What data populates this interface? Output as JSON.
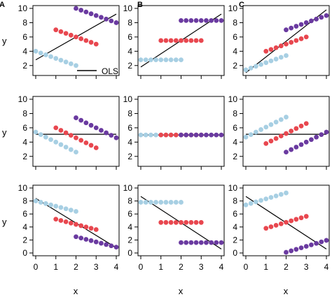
{
  "panel_letters": [
    "A",
    "B",
    "C"
  ],
  "ylabels": [
    "y",
    "y",
    "y"
  ],
  "xlabels": [
    "x",
    "x",
    "x"
  ],
  "legend": {
    "label": "OLS"
  },
  "colors": {
    "light_blue": "#a7cfe3",
    "red": "#e8474f",
    "purple": "#6a3aa0",
    "line": "#000000"
  },
  "chart_data": [
    {
      "type": "scatter",
      "row": 1,
      "col": 1,
      "xlim": [
        0,
        4
      ],
      "ylim": [
        1,
        10
      ],
      "xticks": [
        0,
        1,
        2,
        3,
        4
      ],
      "yticks": [
        2,
        4,
        6,
        8,
        10
      ],
      "series": [
        {
          "color": "light_blue",
          "x": [
            0,
            0.25,
            0.5,
            0.75,
            1,
            1.25,
            1.5,
            1.75,
            2
          ],
          "y": [
            4,
            3.75,
            3.5,
            3.25,
            3,
            2.75,
            2.5,
            2.25,
            2
          ]
        },
        {
          "color": "red",
          "x": [
            1,
            1.25,
            1.5,
            1.75,
            2,
            2.25,
            2.5,
            2.75,
            3
          ],
          "y": [
            7,
            6.75,
            6.5,
            6.25,
            6,
            5.75,
            5.5,
            5.25,
            5
          ]
        },
        {
          "color": "purple",
          "x": [
            2,
            2.25,
            2.5,
            2.75,
            3,
            3.25,
            3.5,
            3.75,
            4
          ],
          "y": [
            10,
            9.75,
            9.5,
            9.25,
            9,
            8.75,
            8.5,
            8.25,
            8
          ]
        }
      ],
      "ols": {
        "x": [
          0,
          4
        ],
        "y": [
          2.8,
          9.2
        ]
      },
      "show_legend": true
    },
    {
      "type": "scatter",
      "row": 1,
      "col": 2,
      "xlim": [
        0,
        4
      ],
      "ylim": [
        1,
        10
      ],
      "xticks": [
        0,
        1,
        2,
        3,
        4
      ],
      "yticks": [
        2,
        4,
        6,
        8,
        10
      ],
      "series": [
        {
          "color": "light_blue",
          "x": [
            0,
            0.25,
            0.5,
            0.75,
            1,
            1.25,
            1.5,
            1.75,
            2
          ],
          "y": [
            2.8,
            2.8,
            2.8,
            2.8,
            2.8,
            2.8,
            2.8,
            2.8,
            2.8
          ]
        },
        {
          "color": "red",
          "x": [
            1,
            1.25,
            1.5,
            1.75,
            2,
            2.25,
            2.5,
            2.75,
            3
          ],
          "y": [
            5.5,
            5.5,
            5.5,
            5.5,
            5.5,
            5.5,
            5.5,
            5.5,
            5.5
          ]
        },
        {
          "color": "purple",
          "x": [
            2,
            2.25,
            2.5,
            2.75,
            3,
            3.25,
            3.5,
            3.75,
            4
          ],
          "y": [
            8.3,
            8.3,
            8.3,
            8.3,
            8.3,
            8.3,
            8.3,
            8.3,
            8.3
          ]
        }
      ],
      "ols": {
        "x": [
          0,
          4
        ],
        "y": [
          1.8,
          9.2
        ]
      }
    },
    {
      "type": "scatter",
      "row": 1,
      "col": 3,
      "xlim": [
        0,
        4
      ],
      "ylim": [
        1,
        10
      ],
      "xticks": [
        0,
        1,
        2,
        3,
        4
      ],
      "yticks": [
        2,
        4,
        6,
        8,
        10
      ],
      "series": [
        {
          "color": "light_blue",
          "x": [
            0,
            0.25,
            0.5,
            0.75,
            1,
            1.25,
            1.5,
            1.75,
            2
          ],
          "y": [
            1.4,
            1.65,
            1.9,
            2.15,
            2.4,
            2.65,
            2.9,
            3.15,
            3.4
          ]
        },
        {
          "color": "red",
          "x": [
            1,
            1.25,
            1.5,
            1.75,
            2,
            2.25,
            2.5,
            2.75,
            3
          ],
          "y": [
            4,
            4.25,
            4.5,
            4.75,
            5,
            5.25,
            5.5,
            5.75,
            6
          ]
        },
        {
          "color": "purple",
          "x": [
            2,
            2.25,
            2.5,
            2.75,
            3,
            3.25,
            3.5,
            3.75,
            4
          ],
          "y": [
            7,
            7.25,
            7.5,
            7.75,
            8,
            8.25,
            8.5,
            8.75,
            9
          ]
        }
      ],
      "ols": {
        "x": [
          0,
          4
        ],
        "y": [
          1.0,
          9.8
        ]
      }
    },
    {
      "type": "scatter",
      "row": 2,
      "col": 1,
      "xlim": [
        0,
        4
      ],
      "ylim": [
        1,
        10
      ],
      "xticks": [
        0,
        1,
        2,
        3,
        4
      ],
      "yticks": [
        2,
        4,
        6,
        8,
        10
      ],
      "series": [
        {
          "color": "light_blue",
          "x": [
            0,
            0.25,
            0.5,
            0.75,
            1,
            1.25,
            1.5,
            1.75,
            2
          ],
          "y": [
            5.4,
            5.05,
            4.7,
            4.35,
            4,
            3.65,
            3.3,
            2.95,
            2.6
          ]
        },
        {
          "color": "red",
          "x": [
            1,
            1.25,
            1.5,
            1.75,
            2,
            2.25,
            2.5,
            2.75,
            3
          ],
          "y": [
            6,
            5.65,
            5.3,
            4.95,
            4.6,
            4.25,
            3.9,
            3.55,
            3.2
          ]
        },
        {
          "color": "purple",
          "x": [
            2,
            2.25,
            2.5,
            2.75,
            3,
            3.25,
            3.5,
            3.75,
            4
          ],
          "y": [
            7.4,
            7.05,
            6.7,
            6.35,
            6,
            5.65,
            5.3,
            4.95,
            4.6
          ]
        }
      ],
      "ols": {
        "x": [
          0,
          4
        ],
        "y": [
          5.1,
          5.1
        ]
      }
    },
    {
      "type": "scatter",
      "row": 2,
      "col": 2,
      "xlim": [
        0,
        4
      ],
      "ylim": [
        1,
        10
      ],
      "xticks": [
        0,
        1,
        2,
        3,
        4
      ],
      "yticks": [
        2,
        4,
        6,
        8,
        10
      ],
      "series": [
        {
          "color": "light_blue",
          "x": [
            0,
            0.25,
            0.5,
            0.75,
            1,
            1.25,
            1.5,
            1.75,
            2
          ],
          "y": [
            5,
            5,
            5,
            5,
            5,
            5,
            5,
            5,
            5
          ]
        },
        {
          "color": "red",
          "x": [
            1,
            1.25,
            1.5,
            1.75,
            2,
            2.25,
            2.5,
            2.75,
            3
          ],
          "y": [
            5,
            5,
            5,
            5,
            5,
            5,
            5,
            5,
            5
          ]
        },
        {
          "color": "purple",
          "x": [
            2,
            2.25,
            2.5,
            2.75,
            3,
            3.25,
            3.5,
            3.75,
            4
          ],
          "y": [
            5,
            5,
            5,
            5,
            5,
            5,
            5,
            5,
            5
          ]
        }
      ],
      "ols": {
        "x": [
          0,
          4
        ],
        "y": [
          5,
          5
        ]
      }
    },
    {
      "type": "scatter",
      "row": 2,
      "col": 3,
      "xlim": [
        0,
        4
      ],
      "ylim": [
        1,
        10
      ],
      "xticks": [
        0,
        1,
        2,
        3,
        4
      ],
      "yticks": [
        2,
        4,
        6,
        8,
        10
      ],
      "series": [
        {
          "color": "light_blue",
          "x": [
            0,
            0.25,
            0.5,
            0.75,
            1,
            1.25,
            1.5,
            1.75,
            2
          ],
          "y": [
            4.7,
            5.05,
            5.4,
            5.75,
            6.1,
            6.45,
            6.8,
            7.15,
            7.5
          ]
        },
        {
          "color": "red",
          "x": [
            1,
            1.25,
            1.5,
            1.75,
            2,
            2.25,
            2.5,
            2.75,
            3
          ],
          "y": [
            3.8,
            4.15,
            4.5,
            4.85,
            5.2,
            5.55,
            5.9,
            6.25,
            6.6
          ]
        },
        {
          "color": "purple",
          "x": [
            2,
            2.25,
            2.5,
            2.75,
            3,
            3.25,
            3.5,
            3.75,
            4
          ],
          "y": [
            2.6,
            2.95,
            3.3,
            3.65,
            4,
            4.35,
            4.7,
            5.05,
            5.4
          ]
        }
      ],
      "ols": {
        "x": [
          0,
          4
        ],
        "y": [
          5.1,
          5.1
        ]
      }
    },
    {
      "type": "scatter",
      "row": 3,
      "col": 1,
      "xlim": [
        0,
        4
      ],
      "ylim": [
        0,
        10
      ],
      "xticks": [
        0,
        1,
        2,
        3,
        4
      ],
      "yticks": [
        0,
        2,
        4,
        6,
        8,
        10
      ],
      "series": [
        {
          "color": "light_blue",
          "x": [
            0,
            0.25,
            0.5,
            0.75,
            1,
            1.25,
            1.5,
            1.75,
            2
          ],
          "y": [
            8,
            7.8,
            7.6,
            7.4,
            7.2,
            7,
            6.8,
            6.6,
            6.4
          ]
        },
        {
          "color": "red",
          "x": [
            1,
            1.25,
            1.5,
            1.75,
            2,
            2.25,
            2.5,
            2.75,
            3
          ],
          "y": [
            5.2,
            5,
            4.8,
            4.6,
            4.4,
            4.2,
            4,
            3.8,
            3.6
          ]
        },
        {
          "color": "purple",
          "x": [
            2,
            2.25,
            2.5,
            2.75,
            3,
            3.25,
            3.5,
            3.75,
            4
          ],
          "y": [
            2.5,
            2.3,
            2.1,
            1.9,
            1.7,
            1.5,
            1.3,
            1.1,
            0.9
          ]
        }
      ],
      "ols": {
        "x": [
          0,
          4
        ],
        "y": [
          8.4,
          0.8
        ]
      }
    },
    {
      "type": "scatter",
      "row": 3,
      "col": 2,
      "xlim": [
        0,
        4
      ],
      "ylim": [
        0,
        10
      ],
      "xticks": [
        0,
        1,
        2,
        3,
        4
      ],
      "yticks": [
        0,
        2,
        4,
        6,
        8,
        10
      ],
      "series": [
        {
          "color": "light_blue",
          "x": [
            0,
            0.25,
            0.5,
            0.75,
            1,
            1.25,
            1.5,
            1.75,
            2
          ],
          "y": [
            7.8,
            7.8,
            7.8,
            7.8,
            7.8,
            7.8,
            7.8,
            7.8,
            7.8
          ]
        },
        {
          "color": "red",
          "x": [
            1,
            1.25,
            1.5,
            1.75,
            2,
            2.25,
            2.5,
            2.75,
            3
          ],
          "y": [
            4.7,
            4.7,
            4.7,
            4.7,
            4.7,
            4.7,
            4.7,
            4.7,
            4.7
          ]
        },
        {
          "color": "purple",
          "x": [
            2,
            2.25,
            2.5,
            2.75,
            3,
            3.25,
            3.5,
            3.75,
            4
          ],
          "y": [
            1.6,
            1.6,
            1.6,
            1.6,
            1.6,
            1.6,
            1.6,
            1.6,
            1.6
          ]
        }
      ],
      "ols": {
        "x": [
          0,
          4
        ],
        "y": [
          8.7,
          0.6
        ]
      }
    },
    {
      "type": "scatter",
      "row": 3,
      "col": 3,
      "xlim": [
        0,
        4
      ],
      "ylim": [
        0,
        10
      ],
      "xticks": [
        0,
        1,
        2,
        3,
        4
      ],
      "yticks": [
        0,
        2,
        4,
        6,
        8,
        10
      ],
      "series": [
        {
          "color": "light_blue",
          "x": [
            0,
            0.25,
            0.5,
            0.75,
            1,
            1.25,
            1.5,
            1.75,
            2
          ],
          "y": [
            7.4,
            7.63,
            7.86,
            8.09,
            8.32,
            8.55,
            8.78,
            9.01,
            9.24
          ]
        },
        {
          "color": "red",
          "x": [
            1,
            1.25,
            1.5,
            1.75,
            2,
            2.25,
            2.5,
            2.75,
            3
          ],
          "y": [
            3.8,
            4.03,
            4.26,
            4.49,
            4.72,
            4.95,
            5.18,
            5.41,
            5.64
          ]
        },
        {
          "color": "purple",
          "x": [
            2,
            2.25,
            2.5,
            2.75,
            3,
            3.25,
            3.5,
            3.75,
            4
          ],
          "y": [
            0.1,
            0.33,
            0.56,
            0.79,
            1.02,
            1.25,
            1.48,
            1.71,
            1.94
          ]
        }
      ],
      "ols": {
        "x": [
          0,
          4
        ],
        "y": [
          8.7,
          0.6
        ]
      }
    }
  ]
}
